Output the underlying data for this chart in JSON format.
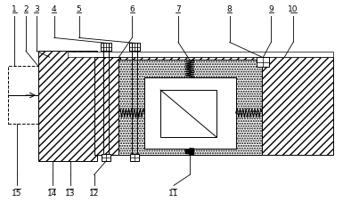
{
  "fig_width": 3.85,
  "fig_height": 2.28,
  "dpi": 100,
  "bg_color": "#ffffff",
  "line_color": "#000000"
}
